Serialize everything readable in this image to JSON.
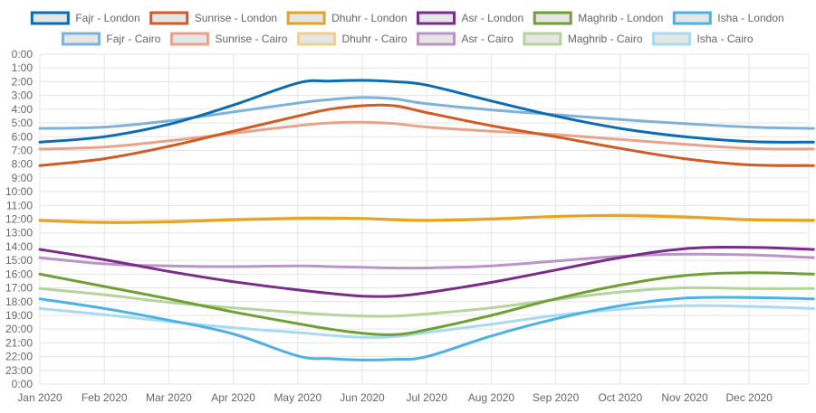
{
  "chart_data": {
    "type": "line",
    "title": "",
    "xlabel": "",
    "ylabel": "",
    "x_ticks": [
      "Jan 2020",
      "Feb 2020",
      "Mar 2020",
      "Apr 2020",
      "May 2020",
      "Jun 2020",
      "Jul 2020",
      "Aug 2020",
      "Sep 2020",
      "Oct 2020",
      "Nov 2020",
      "Dec 2020"
    ],
    "y_ticks": [
      "0:00",
      "1:00",
      "2:00",
      "3:00",
      "4:00",
      "5:00",
      "6:00",
      "7:00",
      "8:00",
      "9:00",
      "10:00",
      "11:00",
      "12:00",
      "13:00",
      "14:00",
      "15:00",
      "16:00",
      "17:00",
      "18:00",
      "19:00",
      "20:00",
      "21:00",
      "22:00",
      "23:00",
      "0:00"
    ],
    "ylim_hours": [
      0,
      24
    ],
    "y_inverted": true,
    "grid": true,
    "legend_position": "top",
    "x_month_index": [
      0,
      1,
      2,
      3,
      4,
      4.5,
      5,
      5.5,
      6,
      7,
      8,
      9,
      10,
      11,
      11.999
    ],
    "series": [
      {
        "name": "Fajr - London",
        "color": "#0B6CB4",
        "values": [
          6.4,
          6.0,
          5.1,
          3.7,
          2.1,
          1.95,
          1.9,
          2.0,
          2.25,
          3.4,
          4.5,
          5.4,
          6.0,
          6.35,
          6.4
        ]
      },
      {
        "name": "Sunrise - London",
        "color": "#D15B22",
        "values": [
          8.1,
          7.6,
          6.7,
          5.6,
          4.5,
          4.0,
          3.75,
          3.75,
          4.25,
          5.2,
          6.0,
          6.85,
          7.6,
          8.05,
          8.1
        ]
      },
      {
        "name": "Dhuhr - London",
        "color": "#E5A321",
        "values": [
          12.1,
          12.25,
          12.2,
          12.05,
          11.95,
          11.95,
          11.95,
          12.05,
          12.1,
          12.0,
          11.8,
          11.75,
          11.85,
          12.05,
          12.1
        ]
      },
      {
        "name": "Asr - London",
        "color": "#7A2C8B",
        "values": [
          14.2,
          14.95,
          15.8,
          16.55,
          17.15,
          17.4,
          17.6,
          17.6,
          17.35,
          16.6,
          15.7,
          14.8,
          14.15,
          14.05,
          14.2
        ]
      },
      {
        "name": "Maghrib - London",
        "color": "#6FA033",
        "values": [
          16.0,
          16.9,
          17.8,
          18.75,
          19.6,
          20.0,
          20.3,
          20.4,
          20.05,
          19.0,
          17.8,
          16.8,
          16.1,
          15.9,
          16.0
        ]
      },
      {
        "name": "Isha - London",
        "color": "#4CB2E5",
        "values": [
          17.8,
          18.5,
          19.35,
          20.35,
          21.95,
          22.15,
          22.25,
          22.2,
          22.0,
          20.5,
          19.25,
          18.3,
          17.75,
          17.7,
          17.8
        ]
      },
      {
        "name": "Fajr - Cairo",
        "color": "#7FB2DA",
        "values": [
          5.4,
          5.3,
          4.85,
          4.2,
          3.55,
          3.3,
          3.15,
          3.25,
          3.6,
          4.05,
          4.4,
          4.75,
          5.05,
          5.3,
          5.4
        ]
      },
      {
        "name": "Sunrise - Cairo",
        "color": "#E8A48A",
        "values": [
          6.9,
          6.75,
          6.3,
          5.75,
          5.2,
          5.0,
          4.95,
          5.05,
          5.3,
          5.6,
          5.85,
          6.2,
          6.55,
          6.85,
          6.9
        ]
      },
      {
        "name": "Dhuhr - Cairo",
        "color": "#F0D08E",
        "values": [
          12.05,
          12.2,
          12.15,
          12.0,
          11.9,
          11.9,
          11.95,
          12.0,
          12.05,
          11.95,
          11.8,
          11.7,
          11.8,
          12.0,
          12.05
        ]
      },
      {
        "name": "Asr - Cairo",
        "color": "#BB94C8",
        "values": [
          14.8,
          15.25,
          15.4,
          15.45,
          15.4,
          15.45,
          15.5,
          15.55,
          15.55,
          15.4,
          15.05,
          14.7,
          14.55,
          14.6,
          14.8
        ]
      },
      {
        "name": "Maghrib - Cairo",
        "color": "#B4D49C",
        "values": [
          17.05,
          17.5,
          18.05,
          18.45,
          18.8,
          18.95,
          19.05,
          19.05,
          18.9,
          18.45,
          17.85,
          17.3,
          17.0,
          17.05,
          17.05
        ]
      },
      {
        "name": "Isha - Cairo",
        "color": "#A9DAF2",
        "values": [
          18.5,
          18.95,
          19.45,
          19.9,
          20.25,
          20.45,
          20.6,
          20.55,
          20.25,
          19.65,
          19.0,
          18.55,
          18.3,
          18.35,
          18.5
        ]
      }
    ]
  }
}
